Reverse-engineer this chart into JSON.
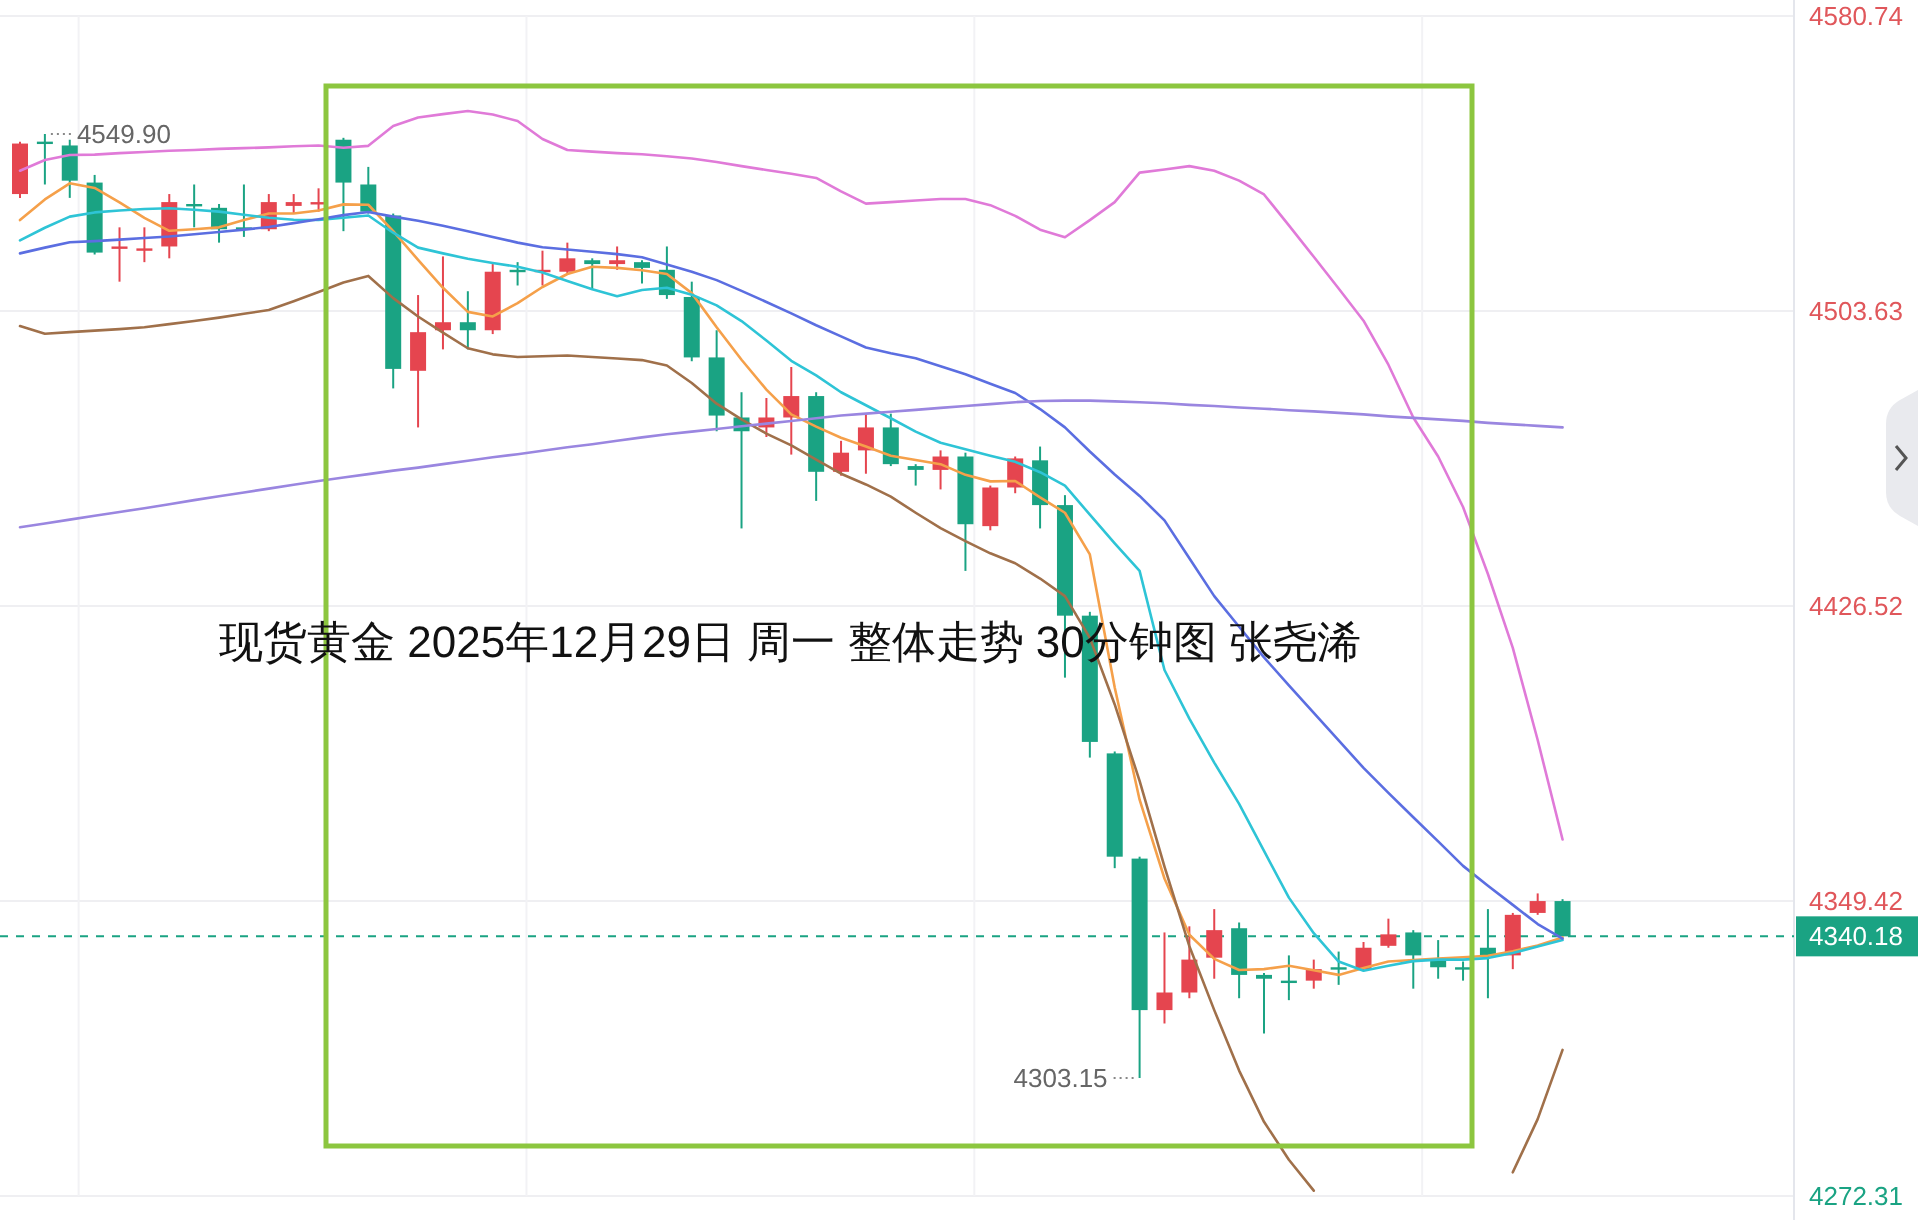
{
  "chart_data": {
    "type": "candlestick",
    "title": "现货黄金 2025年12月29日 周一 整体走势 30分钟图 张尧浠",
    "categories": [
      null,
      null,
      null,
      null,
      null,
      null,
      null,
      null,
      null,
      null,
      null,
      null,
      null,
      null,
      null,
      null,
      null,
      null,
      null,
      null,
      null,
      null,
      null,
      null,
      null,
      null,
      null,
      null,
      null,
      null,
      null,
      null,
      null,
      null,
      null,
      null,
      null,
      null,
      null,
      null,
      null,
      null,
      null,
      null,
      null,
      null,
      null,
      null,
      null,
      null,
      null,
      null,
      null,
      null,
      null,
      null,
      null,
      null,
      null,
      null,
      null,
      null,
      null
    ],
    "ohlc": [
      [
        4534.2,
        4547.9,
        4533.2,
        4547.4
      ],
      [
        4547.9,
        4549.9,
        4536.7,
        4547.4
      ],
      [
        4546.9,
        4548.4,
        4533.2,
        4537.7
      ],
      [
        4537.2,
        4539.2,
        4518.4,
        4518.9
      ],
      [
        4520.0,
        4525.5,
        4511.3,
        4520.5
      ],
      [
        4519.4,
        4525.5,
        4516.4,
        4520.0
      ],
      [
        4520.5,
        4534.2,
        4517.4,
        4532.1
      ],
      [
        4531.6,
        4536.7,
        4525.5,
        4531.1
      ],
      [
        4530.6,
        4531.6,
        4521.5,
        4525.0
      ],
      [
        4525.5,
        4536.7,
        4523.0,
        4525.0
      ],
      [
        4525.0,
        4534.2,
        4524.5,
        4532.1
      ],
      [
        4531.1,
        4534.2,
        4529.1,
        4532.1
      ],
      [
        4531.6,
        4535.7,
        4529.6,
        4532.1
      ],
      [
        4548.4,
        4548.9,
        4524.5,
        4537.2
      ],
      [
        4536.7,
        4541.3,
        4529.1,
        4529.6
      ],
      [
        4528.6,
        4529.1,
        4483.4,
        4488.5
      ],
      [
        4488.0,
        4507.8,
        4473.2,
        4498.1
      ],
      [
        4498.6,
        4517.9,
        4493.6,
        4500.7
      ],
      [
        4500.7,
        4508.8,
        4493.6,
        4498.6
      ],
      [
        4498.6,
        4515.9,
        4497.6,
        4513.9
      ],
      [
        4514.4,
        4516.4,
        4510.3,
        4513.9
      ],
      [
        4513.9,
        4519.4,
        4510.3,
        4514.4
      ],
      [
        4513.9,
        4521.5,
        4513.4,
        4517.4
      ],
      [
        4516.9,
        4517.4,
        4509.3,
        4515.9
      ],
      [
        4515.9,
        4520.5,
        4514.4,
        4516.9
      ],
      [
        4516.4,
        4516.9,
        4510.8,
        4514.9
      ],
      [
        4514.4,
        4520.5,
        4506.8,
        4507.8
      ],
      [
        4507.3,
        4511.3,
        4490.5,
        4491.5
      ],
      [
        4491.5,
        4498.6,
        4472.2,
        4476.3
      ],
      [
        4475.8,
        4482.4,
        4446.8,
        4472.2
      ],
      [
        4473.2,
        4480.9,
        4470.7,
        4475.8
      ],
      [
        4475.8,
        4489.0,
        4466.1,
        4481.4
      ],
      [
        4481.4,
        4482.4,
        4454.0,
        4461.6
      ],
      [
        4461.6,
        4469.7,
        4460.6,
        4466.6
      ],
      [
        4467.2,
        4476.8,
        4461.1,
        4473.2
      ],
      [
        4473.2,
        4476.8,
        4463.1,
        4463.6
      ],
      [
        4463.1,
        4463.6,
        4458.0,
        4462.1
      ],
      [
        4462.1,
        4467.2,
        4457.0,
        4465.6
      ],
      [
        4465.6,
        4466.6,
        4435.7,
        4447.9
      ],
      [
        4447.4,
        4458.0,
        4446.3,
        4457.5
      ],
      [
        4457.5,
        4465.6,
        4456.0,
        4465.1
      ],
      [
        4464.6,
        4468.2,
        4446.8,
        4452.9
      ],
      [
        4452.9,
        4455.5,
        4407.8,
        4424.0
      ],
      [
        4424.0,
        4425.0,
        4386.9,
        4391.0
      ],
      [
        4388.0,
        4388.5,
        4358.0,
        4361.0
      ],
      [
        4360.5,
        4361.0,
        4303.15,
        4320.9
      ],
      [
        4320.9,
        4341.2,
        4317.4,
        4325.5
      ],
      [
        4325.5,
        4342.8,
        4324.0,
        4334.1
      ],
      [
        4334.6,
        4347.3,
        4329.1,
        4341.8
      ],
      [
        4342.3,
        4343.8,
        4324.0,
        4330.1
      ],
      [
        4330.1,
        4330.6,
        4314.8,
        4329.1
      ],
      [
        4328.6,
        4335.2,
        4323.5,
        4328.0
      ],
      [
        4328.6,
        4334.1,
        4326.5,
        4331.6
      ],
      [
        4332.1,
        4336.2,
        4327.5,
        4331.6
      ],
      [
        4331.6,
        4338.7,
        4331.1,
        4337.2
      ],
      [
        4337.7,
        4344.8,
        4337.2,
        4340.7
      ],
      [
        4341.2,
        4341.8,
        4326.5,
        4335.2
      ],
      [
        4334.1,
        4339.2,
        4329.1,
        4332.1
      ],
      [
        4332.1,
        4333.6,
        4328.6,
        4331.6
      ],
      [
        4337.2,
        4347.3,
        4324.0,
        4335.2
      ],
      [
        4335.2,
        4346.3,
        4331.6,
        4345.8
      ],
      [
        4346.3,
        4351.4,
        4345.8,
        4349.4
      ],
      [
        4349.4,
        4349.9,
        4340.18,
        4340.18
      ]
    ],
    "colors": [
      "#e5454f",
      "#1aa383",
      "#1aa383",
      "#1aa383",
      "#e5454f",
      "#e5454f",
      "#e5454f",
      "#1aa383",
      "#1aa383",
      "#1aa383",
      "#e5454f",
      "#e5454f",
      "#e5454f",
      "#1aa383",
      "#1aa383",
      "#1aa383",
      "#e5454f",
      "#e5454f",
      "#1aa383",
      "#e5454f",
      "#1aa383",
      "#e5454f",
      "#e5454f",
      "#1aa383",
      "#e5454f",
      "#1aa383",
      "#1aa383",
      "#1aa383",
      "#1aa383",
      "#1aa383",
      "#e5454f",
      "#e5454f",
      "#1aa383",
      "#e5454f",
      "#e5454f",
      "#1aa383",
      "#1aa383",
      "#e5454f",
      "#1aa383",
      "#e5454f",
      "#e5454f",
      "#1aa383",
      "#1aa383",
      "#1aa383",
      "#1aa383",
      "#1aa383",
      "#e5454f",
      "#e5454f",
      "#e5454f",
      "#1aa383",
      "#1aa383",
      "#1aa383",
      "#e5454f",
      "#1aa383",
      "#e5454f",
      "#e5454f",
      "#1aa383",
      "#1aa383",
      "#1aa383",
      "#1aa383",
      "#e5454f",
      "#e5454f",
      "#1aa383"
    ],
    "series": [
      {
        "type": "line",
        "color": "#f5a04a",
        "values": [
          4527.4,
          4532.8,
          4537.0,
          4535.8,
          4532.0,
          4528.0,
          4524.6,
          4525.0,
          4525.5,
          4527.4,
          4529.1,
          4529.1,
          4529.9,
          4531.5,
          4531.4,
          4524.5,
          4517.0,
          4509.7,
          4503.4,
          4502.2,
          4505.7,
          4509.9,
          4513.3,
          4515.2,
          4514.9,
          4514.3,
          4513.3,
          4508.3,
          4499.4,
          4490.9,
          4483.1,
          4476.6,
          4473.4,
          4470.5,
          4468.2,
          4465.8,
          4464.7,
          4463.6,
          4460.8,
          4459.1,
          4459.2,
          4454.9,
          4450.9,
          4440.0,
          4405.2,
          4375.9,
          4355.3,
          4340.6,
          4334.3,
          4331.4,
          4331.6,
          4332.5,
          4331.3,
          4330.1,
          4331.9,
          4333.6,
          4334.0,
          4334.4,
          4334.7,
          4335.1,
          4336.3,
          4337.8,
          4339.9
        ]
      },
      {
        "type": "line",
        "color": "#2ec4d6",
        "values": [
          4522.1,
          4525.4,
          4528.3,
          4529.4,
          4529.9,
          4530.3,
          4530.5,
          4530.1,
          4529.6,
          4528.8,
          4528.0,
          4527.5,
          4527.4,
          4528.0,
          4528.6,
          4524.1,
          4520.2,
          4518.7,
          4517.3,
          4516.2,
          4515.2,
          4513.7,
          4511.5,
          4509.3,
          4507.5,
          4509.1,
          4509.7,
          4507.9,
          4505.1,
          4501.0,
          4495.9,
          4490.6,
          4486.8,
          4482.4,
          4479.0,
          4475.6,
          4472.1,
          4469.2,
          4467.5,
          4465.8,
          4464.2,
          4461.5,
          4458.0,
          4450.4,
          4442.9,
          4435.7,
          4409.8,
          4397.1,
          4385.6,
          4374.8,
          4362.5,
          4350.3,
          4341.0,
          4333.6,
          4331.2,
          4332.5,
          4333.7,
          4334.1,
          4334.1,
          4334.5,
          4335.8,
          4337.5,
          4339.2
        ]
      },
      {
        "type": "line",
        "color": "#5b6ee1",
        "values": [
          4518.7,
          4520.2,
          4521.6,
          4521.9,
          4522.3,
          4522.7,
          4523.1,
          4523.7,
          4524.3,
          4524.9,
          4525.6,
          4526.6,
          4527.6,
          4528.7,
          4529.5,
          4528.3,
          4527.2,
          4525.9,
          4524.5,
          4523.0,
          4521.5,
          4520.3,
          4519.7,
          4519.1,
          4518.5,
          4517.7,
          4515.8,
          4513.9,
          4511.7,
          4508.9,
          4506.0,
          4503.0,
          4499.9,
          4497.0,
          4494.1,
          4492.6,
          4491.3,
          4489.2,
          4487.1,
          4484.6,
          4482.2,
          4478.0,
          4473.2,
          4466.9,
          4460.9,
          4455.3,
          4448.9,
          4439.0,
          4429.1,
          4421.1,
          4413.1,
          4405.8,
          4398.6,
          4391.4,
          4384.2,
          4377.7,
          4371.3,
          4365.0,
          4358.6,
          4353.4,
          4348.4,
          4343.4,
          4339.6
        ]
      },
      {
        "type": "line",
        "color": "#e07ad8",
        "values": [
          4540.3,
          4543.1,
          4544.4,
          4544.5,
          4544.9,
          4545.2,
          4545.5,
          4545.7,
          4546.0,
          4546.2,
          4546.4,
          4546.7,
          4546.9,
          4546.3,
          4546.8,
          4552.0,
          4554.2,
          4555.1,
          4555.9,
          4555.0,
          4553.3,
          4548.6,
          4545.7,
          4545.3,
          4544.9,
          4544.6,
          4544.1,
          4543.5,
          4542.6,
          4541.5,
          4540.5,
          4539.5,
          4538.4,
          4534.9,
          4531.7,
          4532.1,
          4532.5,
          4532.9,
          4532.9,
          4531.3,
          4528.5,
          4524.9,
          4522.9,
          4527.4,
          4532.1,
          4539.8,
          4540.6,
          4541.5,
          4540.3,
          4537.7,
          4534.1,
          4526.0,
          4517.8,
          4509.5,
          4501.1,
          4489.6,
          4475.8,
          4465.6,
          4452.4,
          4434.9,
          4415.6,
          4391.5,
          4365.5
        ]
      },
      {
        "type": "line",
        "color": "#a0704a",
        "values": [
          4499.7,
          4497.7,
          4498.1,
          4498.5,
          4498.9,
          4499.4,
          4500.2,
          4501.0,
          4501.9,
          4502.9,
          4503.9,
          4506.2,
          4508.6,
          4511.1,
          4512.8,
          4507.0,
          4502.2,
          4498.0,
          4493.9,
          4492.3,
          4491.6,
          4491.8,
          4492.0,
          4491.6,
          4491.2,
          4490.8,
          4489.4,
          4484.8,
          4479.4,
          4475.3,
          4471.6,
          4468.5,
          4464.8,
          4461.1,
          4458.3,
          4455.1,
          4450.9,
          4446.9,
          4443.5,
          4440.3,
          4437.7,
          4433.7,
          4429.1,
          4418.2,
          4400.8,
          4380.8,
          4358.4,
          4337.6,
          4320.9,
          4305.1,
          4291.7,
          4281.8,
          4273.7,
          null,
          null,
          null,
          null,
          null,
          null,
          null,
          4278.5,
          4292.4,
          4310.5
        ]
      },
      {
        "type": "line",
        "color": "#9a86e0",
        "values": [
          4447.1,
          4448.1,
          4449.1,
          4450.1,
          4451.1,
          4452.1,
          4453.1,
          4454.2,
          4455.2,
          4456.2,
          4457.2,
          4458.2,
          4459.2,
          4460.1,
          4461.0,
          4461.9,
          4462.7,
          4463.6,
          4464.5,
          4465.4,
          4466.2,
          4467.1,
          4468.0,
          4468.8,
          4469.7,
          4470.6,
          4471.4,
          4472.1,
          4472.8,
          4473.5,
          4474.2,
          4474.9,
          4475.6,
          4476.3,
          4476.8,
          4477.3,
          4477.8,
          4478.3,
          4478.8,
          4479.3,
          4479.8,
          4480.1,
          4480.2,
          4480.2,
          4480.0,
          4479.8,
          4479.5,
          4479.1,
          4478.8,
          4478.4,
          4478.1,
          4477.7,
          4477.4,
          4477.0,
          4476.6,
          4476.1,
          4475.7,
          4475.3,
          4474.9,
          4474.4,
          4474.0,
          4473.6,
          4473.2
        ]
      }
    ],
    "ylim": [
      4272.31,
      4580.74
    ],
    "yticks": [
      4272.31,
      4349.42,
      4426.52,
      4503.63,
      4580.74
    ],
    "grid": "y",
    "tick_labels": "y",
    "ref_lines": [
      {
        "axis": "y",
        "value": 4340.18,
        "label": "4340.18",
        "color": "#1aa383",
        "line_style": "dashed"
      }
    ],
    "annotations": [
      "4549.90",
      "4303.15"
    ]
  }
}
